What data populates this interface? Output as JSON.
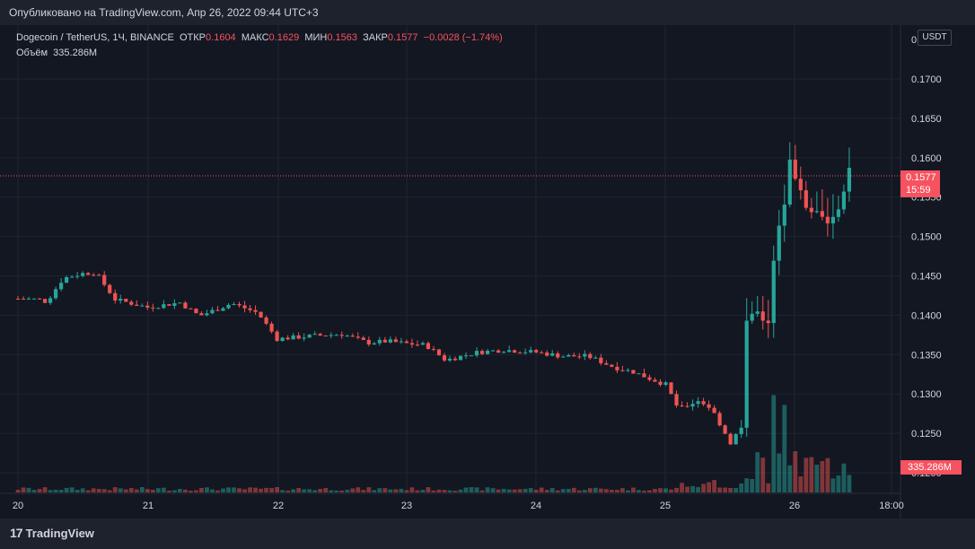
{
  "header": {
    "published": "Опубликовано на TradingView.com, Апр 26, 2022 09:44 UTC+3"
  },
  "legend": {
    "symbol": "Dogecoin / TetherUS, 1Ч, BINANCE",
    "open_label": "ОТКР",
    "open": "0.1604",
    "high_label": "МАКС",
    "high": "0.1629",
    "low_label": "МИН",
    "low": "0.1563",
    "close_label": "ЗАКР",
    "close": "0.1577",
    "change": "−0.0028 (−1.74%)",
    "volume_label": "Объём",
    "volume": "335.286M"
  },
  "price_axis": {
    "currency_button": "USDT",
    "last_price": "0.1577",
    "countdown": "15:59",
    "volume_tag": "335.286M",
    "top_tick_partial": "0"
  },
  "footer": {
    "brand": "TradingView",
    "brand_mark": "17"
  },
  "colors": {
    "background": "#131722",
    "up": "#26a69a",
    "down": "#ef5350",
    "grid": "#1f2430",
    "axis_text": "#d1d4dc"
  },
  "chart_data": {
    "type": "candlestick",
    "title": "Dogecoin / TetherUS, 1Ч, BINANCE",
    "ylabel": "USDT",
    "ylim": [
      0.1175,
      0.1755
    ],
    "y_ticks": [
      "0.1700",
      "0.1650",
      "0.1600",
      "0.1550",
      "0.1500",
      "0.1450",
      "0.1400",
      "0.1350",
      "0.1300",
      "0.1250",
      "0.1200"
    ],
    "x_ticks": [
      "20",
      "21",
      "22",
      "23",
      "24",
      "25",
      "26",
      "18:00"
    ],
    "last_close": 0.1577,
    "volume_last": "335.286M",
    "series": [
      {
        "name": "close_path",
        "anchors_day_close": [
          [
            0,
            0.1421
          ],
          [
            0.16,
            0.142
          ],
          [
            0.22,
            0.1417
          ],
          [
            0.35,
            0.1447
          ],
          [
            0.5,
            0.1453
          ],
          [
            0.6,
            0.1454
          ],
          [
            0.75,
            0.142
          ],
          [
            1.0,
            0.141
          ],
          [
            1.25,
            0.1416
          ],
          [
            1.4,
            0.1399
          ],
          [
            1.65,
            0.1415
          ],
          [
            1.85,
            0.1403
          ],
          [
            2.0,
            0.137
          ],
          [
            2.15,
            0.1372
          ],
          [
            2.3,
            0.1374
          ],
          [
            2.5,
            0.1376
          ],
          [
            2.7,
            0.1365
          ],
          [
            2.85,
            0.1367
          ],
          [
            3.0,
            0.1364
          ],
          [
            3.15,
            0.1362
          ],
          [
            3.3,
            0.1343
          ],
          [
            3.55,
            0.1353
          ],
          [
            3.75,
            0.1356
          ],
          [
            4.0,
            0.1353
          ],
          [
            4.2,
            0.1348
          ],
          [
            4.4,
            0.1348
          ],
          [
            4.6,
            0.1334
          ],
          [
            4.75,
            0.1328
          ],
          [
            4.9,
            0.1318
          ],
          [
            5.0,
            0.1312
          ],
          [
            5.1,
            0.128
          ],
          [
            5.25,
            0.1292
          ],
          [
            5.35,
            0.1282
          ],
          [
            5.5,
            0.1238
          ],
          [
            5.55,
            0.125
          ],
          [
            5.6,
            0.126
          ],
          [
            5.62,
            0.139
          ],
          [
            5.7,
            0.1406
          ],
          [
            5.75,
            0.1394
          ],
          [
            5.8,
            0.139
          ],
          [
            5.82,
            0.1455
          ],
          [
            5.86,
            0.1505
          ],
          [
            5.92,
            0.1545
          ],
          [
            5.95,
            0.1605
          ],
          [
            6.0,
            0.1575
          ],
          [
            6.05,
            0.1555
          ],
          [
            6.1,
            0.153
          ],
          [
            6.17,
            0.1535
          ],
          [
            6.25,
            0.1515
          ],
          [
            6.32,
            0.153
          ],
          [
            6.37,
            0.155
          ],
          [
            6.4,
            0.1605
          ],
          [
            6.43,
            0.1577
          ]
        ]
      },
      {
        "name": "volume_relative",
        "note": "volume bars are low until day 25 evening, peak near the day-26 boundary"
      }
    ]
  }
}
